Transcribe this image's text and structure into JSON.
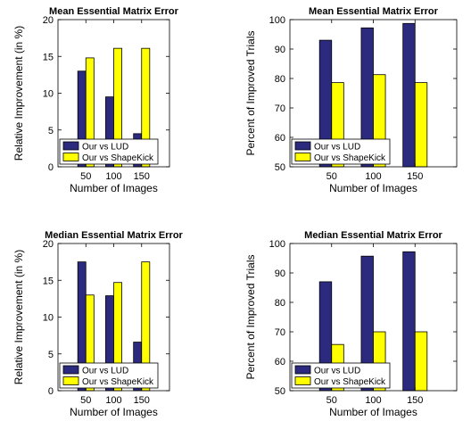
{
  "chart_data": [
    {
      "type": "bar",
      "title": "Mean Essential Matrix Error",
      "xlabel": "Number of Images",
      "ylabel": "Relative Improvement (in %)",
      "categories": [
        "50",
        "100",
        "150"
      ],
      "ylim": [
        0,
        20
      ],
      "yticks": [
        "0",
        "5",
        "10",
        "15",
        "20"
      ],
      "legend_position": "bottom-left",
      "series": [
        {
          "name": "Our vs LUD",
          "color": "#2c2a7e",
          "values": [
            13.0,
            9.5,
            4.5
          ]
        },
        {
          "name": "Our vs ShapeKick",
          "color": "#ffff00",
          "values": [
            14.8,
            16.1,
            16.1
          ]
        }
      ]
    },
    {
      "type": "bar",
      "title": "Mean Essential Matrix Error",
      "xlabel": "Number of Images",
      "ylabel": "Percent of Improved Trials",
      "categories": [
        "50",
        "100",
        "150"
      ],
      "ylim": [
        50,
        100
      ],
      "yticks": [
        "50",
        "60",
        "70",
        "80",
        "90",
        "100"
      ],
      "legend_position": "bottom-left",
      "series": [
        {
          "name": "Our vs LUD",
          "color": "#2c2a7e",
          "values": [
            93.0,
            97.2,
            98.7
          ]
        },
        {
          "name": "Our vs ShapeKick",
          "color": "#ffff00",
          "values": [
            78.6,
            81.3,
            78.6
          ]
        }
      ]
    },
    {
      "type": "bar",
      "title": "Median Essential Matrix Error",
      "xlabel": "Number of Images",
      "ylabel": "Relative Improvement (in %)",
      "categories": [
        "50",
        "100",
        "150"
      ],
      "ylim": [
        0,
        20
      ],
      "yticks": [
        "0",
        "5",
        "10",
        "15",
        "20"
      ],
      "legend_position": "bottom-left",
      "series": [
        {
          "name": "Our vs LUD",
          "color": "#2c2a7e",
          "values": [
            17.5,
            12.9,
            6.6
          ]
        },
        {
          "name": "Our vs ShapeKick",
          "color": "#ffff00",
          "values": [
            13.0,
            14.7,
            17.5
          ]
        }
      ]
    },
    {
      "type": "bar",
      "title": "Median Essential Matrix Error",
      "xlabel": "Number of Images",
      "ylabel": "Percent of Improved Trials",
      "categories": [
        "50",
        "100",
        "150"
      ],
      "ylim": [
        50,
        100
      ],
      "yticks": [
        "50",
        "60",
        "70",
        "80",
        "90",
        "100"
      ],
      "legend_position": "bottom-left",
      "series": [
        {
          "name": "Our vs LUD",
          "color": "#2c2a7e",
          "values": [
            87.0,
            95.7,
            97.2
          ]
        },
        {
          "name": "Our vs ShapeKick",
          "color": "#ffff00",
          "values": [
            65.7,
            70.0,
            70.0
          ]
        }
      ]
    }
  ]
}
